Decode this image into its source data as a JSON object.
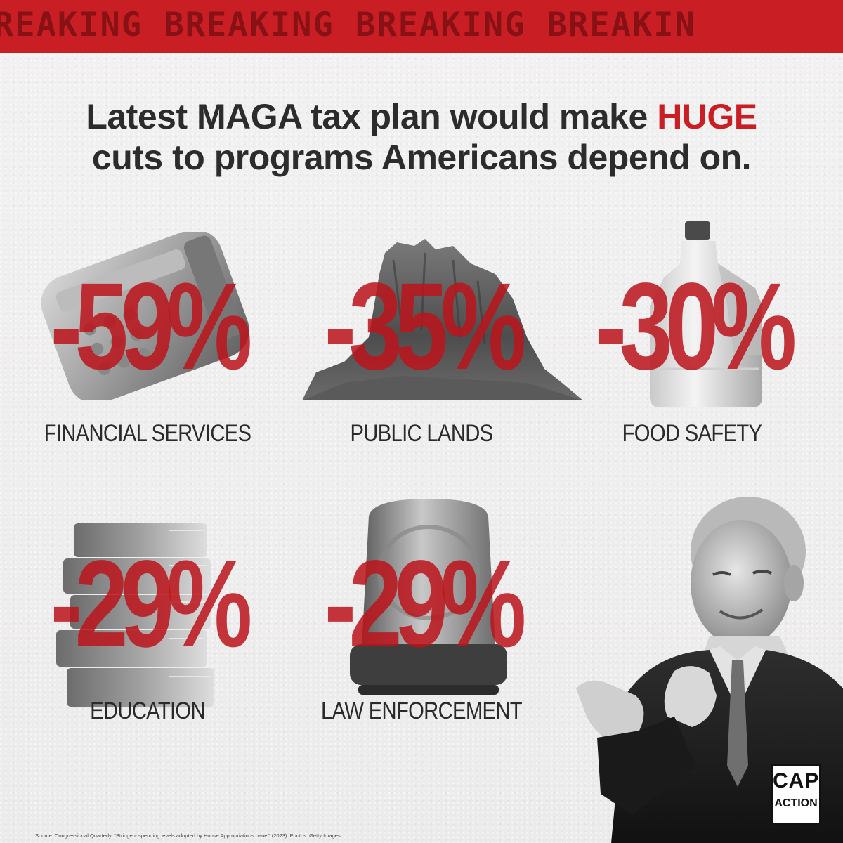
{
  "banner": {
    "text": "REAKING  BREAKING  BREAKING  BREAKIN"
  },
  "headline": {
    "line1_pre": "Latest MAGA tax plan would make ",
    "line1_emphasis": "HUGE",
    "line2": "cuts to programs Americans depend on."
  },
  "cuts": [
    {
      "percent": "-59%",
      "label": "FINANCIAL SERVICES",
      "icon": "payment-terminal-icon"
    },
    {
      "percent": "-35%",
      "label": "PUBLIC LANDS",
      "icon": "mountain-icon"
    },
    {
      "percent": "-30%",
      "label": "FOOD SAFETY",
      "icon": "milk-jug-icon"
    },
    {
      "percent": "-29%",
      "label": "EDUCATION",
      "icon": "books-icon"
    },
    {
      "percent": "-29%",
      "label": "LAW ENFORCEMENT",
      "icon": "siren-light-icon"
    }
  ],
  "logo": {
    "line1": "CAP",
    "line2": "ACTION"
  },
  "source": "Source: Congressional Quarterly, “Stringent spending levels adopted by House Appropriations panel” (2023). Photos: Getty Images.",
  "colors": {
    "accent_red": "#c91f24",
    "dark_red": "#7a0e12",
    "text_dark": "#2c2c2c",
    "background": "#efeeee"
  }
}
